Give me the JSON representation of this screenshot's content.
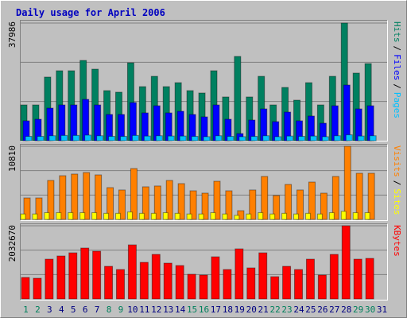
{
  "chart_data": [
    {
      "type": "bar",
      "title": "Daily usage for April 2006",
      "legend_separator": "/",
      "ylim": [
        0,
        37986
      ],
      "yticks": [
        37986
      ],
      "grid": true,
      "series": [
        {
          "name": "Hits",
          "color": "#008060",
          "values": [
            11550,
            11550,
            20540,
            22590,
            22590,
            25920,
            23100,
            16170,
            15660,
            25150,
            17460,
            20790,
            17460,
            18740,
            16170,
            15400,
            22590,
            14120,
            27210,
            14120,
            20790,
            11550,
            17200,
            13090,
            18740,
            11550,
            20790,
            37986,
            21820,
            24900,
            null
          ]
        },
        {
          "name": "Files",
          "color": "#0000ff",
          "values": [
            6420,
            6930,
            10520,
            11550,
            11550,
            13350,
            11550,
            8470,
            8470,
            12320,
            8980,
            11290,
            8980,
            9500,
            8470,
            7700,
            11550,
            6930,
            2310,
            6670,
            10270,
            6160,
            9240,
            6420,
            7960,
            5650,
            11290,
            17970,
            10270,
            11290,
            null
          ]
        },
        {
          "name": "Pages",
          "color": "#00c0ff",
          "values": [
            1400,
            1400,
            1600,
            1700,
            1700,
            1800,
            1600,
            1400,
            1400,
            1700,
            1500,
            1600,
            1500,
            1500,
            1400,
            1300,
            1600,
            1400,
            1300,
            1400,
            1600,
            1300,
            1500,
            1400,
            1500,
            1300,
            1600,
            1900,
            1500,
            1600,
            null
          ]
        }
      ]
    },
    {
      "type": "bar",
      "ylim": [
        0,
        10810
      ],
      "yticks": [
        10810
      ],
      "grid": true,
      "series": [
        {
          "name": "Visits",
          "color": "#ff8000",
          "values": [
            3170,
            3170,
            5760,
            6460,
            6700,
            6930,
            6580,
            4700,
            4350,
            7520,
            4820,
            4940,
            5760,
            5290,
            4230,
            3880,
            5640,
            4230,
            1290,
            4350,
            6350,
            3530,
            5170,
            4350,
            5520,
            3880,
            6350,
            10810,
            6820,
            6820,
            null
          ]
        },
        {
          "name": "Sites",
          "color": "#ffff00",
          "values": [
            800,
            800,
            1000,
            1000,
            1000,
            1000,
            1000,
            900,
            900,
            1100,
            900,
            900,
            1000,
            900,
            800,
            800,
            1000,
            800,
            600,
            800,
            1000,
            800,
            900,
            800,
            900,
            800,
            1000,
            1200,
            1000,
            1000,
            null
          ]
        }
      ]
    },
    {
      "type": "bar",
      "ylim": [
        0,
        2032670
      ],
      "yticks": [
        2032670
      ],
      "grid": true,
      "categories": [
        "1",
        "2",
        "3",
        "4",
        "5",
        "6",
        "7",
        "8",
        "9",
        "10",
        "11",
        "12",
        "13",
        "14",
        "15",
        "16",
        "17",
        "18",
        "19",
        "20",
        "21",
        "22",
        "23",
        "24",
        "25",
        "26",
        "27",
        "28",
        "29",
        "30",
        "31"
      ],
      "category_colors": [
        "#00805c",
        "#00805c",
        "#000080",
        "#000080",
        "#000080",
        "#000080",
        "#000080",
        "#00805c",
        "#00805c",
        "#000080",
        "#000080",
        "#000080",
        "#000080",
        "#000080",
        "#00805c",
        "#00805c",
        "#000080",
        "#000080",
        "#000080",
        "#000080",
        "#000080",
        "#00805c",
        "#00805c",
        "#000080",
        "#000080",
        "#000080",
        "#000080",
        "#000080",
        "#00805c",
        "#00805c",
        "#000080"
      ],
      "series": [
        {
          "name": "KBytes",
          "color": "#ff0000",
          "values": [
            596500,
            574400,
            1104700,
            1193100,
            1281500,
            1414000,
            1325600,
            905900,
            817500,
            1502400,
            1016300,
            1237300,
            994200,
            928000,
            684900,
            662800,
            1171000,
            817500,
            1391900,
            861700,
            1281500,
            618600,
            905900,
            817500,
            1104700,
            662800,
            1237300,
            2032670,
            1104700,
            1126800,
            null
          ]
        }
      ]
    }
  ]
}
